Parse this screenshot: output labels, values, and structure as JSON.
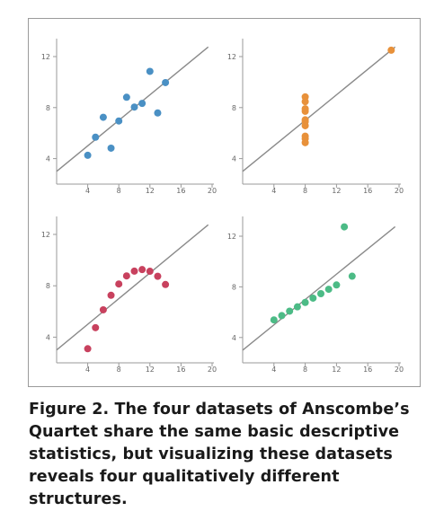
{
  "caption": "Figure 2. The four datasets of Anscombe’s Quartet share the same basic descriptive statistics, but visualizing these datasets reveals four qualitatively different structures.",
  "colors": {
    "axis": "#9a9a9a",
    "fit_line": "#8a8a8a",
    "tick_text": "#666666"
  },
  "chart_data": [
    {
      "type": "scatter",
      "title": "",
      "xlabel": "",
      "ylabel": "",
      "xlim": [
        0,
        20
      ],
      "ylim": [
        2,
        14
      ],
      "xticks": [
        "4",
        "8",
        "12",
        "16",
        "20"
      ],
      "yticks": [
        "4",
        "8",
        "12"
      ],
      "grid": false,
      "color": "#4a90c4",
      "series": [
        {
          "x": [
            10,
            8,
            13,
            9,
            11,
            14,
            6,
            4,
            12,
            7,
            5
          ],
          "y": [
            8.04,
            6.95,
            7.58,
            8.81,
            8.33,
            9.96,
            7.24,
            4.26,
            10.84,
            4.82,
            5.68
          ]
        }
      ],
      "fit_line": {
        "intercept": 3.0,
        "slope": 0.5
      }
    },
    {
      "type": "scatter",
      "title": "",
      "xlabel": "",
      "ylabel": "",
      "xlim": [
        0,
        20
      ],
      "ylim": [
        2,
        14
      ],
      "xticks": [
        "4",
        "8",
        "12",
        "16",
        "20"
      ],
      "yticks": [
        "4",
        "8",
        "12"
      ],
      "grid": false,
      "color": "#e8913a",
      "series": [
        {
          "x": [
            8,
            8,
            8,
            8,
            8,
            8,
            8,
            19,
            8,
            8,
            8
          ],
          "y": [
            6.58,
            5.76,
            7.71,
            8.84,
            8.47,
            7.04,
            5.25,
            12.5,
            5.56,
            7.91,
            6.89
          ]
        }
      ],
      "fit_line": {
        "intercept": 3.0,
        "slope": 0.5
      }
    },
    {
      "type": "scatter",
      "title": "",
      "xlabel": "",
      "ylabel": "",
      "xlim": [
        0,
        20
      ],
      "ylim": [
        2,
        14
      ],
      "xticks": [
        "4",
        "8",
        "12",
        "16",
        "20"
      ],
      "yticks": [
        "4",
        "8",
        "12"
      ],
      "grid": false,
      "color": "#c8415e",
      "series": [
        {
          "x": [
            10,
            8,
            13,
            9,
            11,
            14,
            6,
            4,
            12,
            7,
            5
          ],
          "y": [
            9.14,
            8.14,
            8.74,
            8.77,
            9.26,
            8.1,
            6.13,
            3.1,
            9.13,
            7.26,
            4.74
          ]
        }
      ],
      "fit_line": {
        "intercept": 3.0,
        "slope": 0.5
      }
    },
    {
      "type": "scatter",
      "title": "",
      "xlabel": "",
      "ylabel": "",
      "xlim": [
        0,
        20
      ],
      "ylim": [
        2,
        14
      ],
      "xticks": [
        "4",
        "8",
        "12",
        "16",
        "20"
      ],
      "yticks": [
        "4",
        "8",
        "12"
      ],
      "grid": false,
      "color": "#4cbb86",
      "series": [
        {
          "x": [
            10,
            8,
            13,
            9,
            11,
            14,
            6,
            4,
            12,
            7,
            5
          ],
          "y": [
            7.46,
            6.77,
            12.74,
            7.11,
            7.81,
            8.84,
            6.08,
            5.39,
            8.15,
            6.42,
            5.73
          ]
        }
      ],
      "fit_line": {
        "intercept": 3.0,
        "slope": 0.5
      }
    }
  ]
}
